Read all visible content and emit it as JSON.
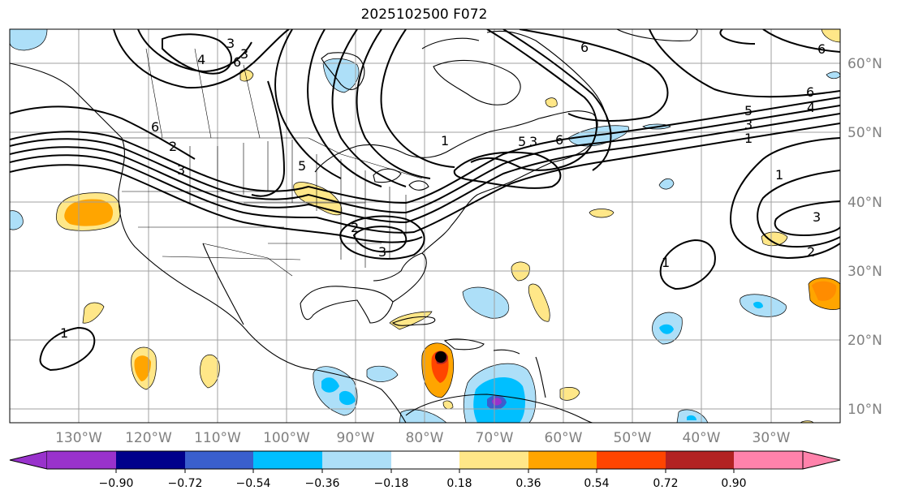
{
  "title": "2025102500 F072",
  "map": {
    "lon_labels": [
      "130°W",
      "120°W",
      "110°W",
      "100°W",
      "90°W",
      "80°W",
      "70°W",
      "60°W",
      "50°W",
      "40°W",
      "30°W"
    ],
    "lat_labels": [
      "60°N",
      "50°N",
      "40°N",
      "30°N",
      "20°N",
      "10°N"
    ],
    "contour_labels": [
      "1",
      "3",
      "3",
      "4",
      "6",
      "2",
      "3",
      "6",
      "6",
      "6",
      "1",
      "3",
      "5",
      "5",
      "2",
      "6",
      "1",
      "1",
      "3",
      "2",
      "3",
      "6",
      "5",
      "4",
      "3",
      "1",
      "1",
      "3",
      "2",
      "1",
      "1"
    ]
  },
  "colorbar": {
    "ticks": [
      "−0.90",
      "−0.72",
      "−0.54",
      "−0.36",
      "−0.18",
      "0.18",
      "0.36",
      "0.54",
      "0.72",
      "0.90"
    ],
    "colors": [
      "#9932CC",
      "#00008B",
      "#3A5FCD",
      "#00BFFF",
      "#ADDFF8",
      "#FFFFFF",
      "#FFE788",
      "#FFA500",
      "#FF4500",
      "#B22222",
      "#FF82AB"
    ]
  }
}
